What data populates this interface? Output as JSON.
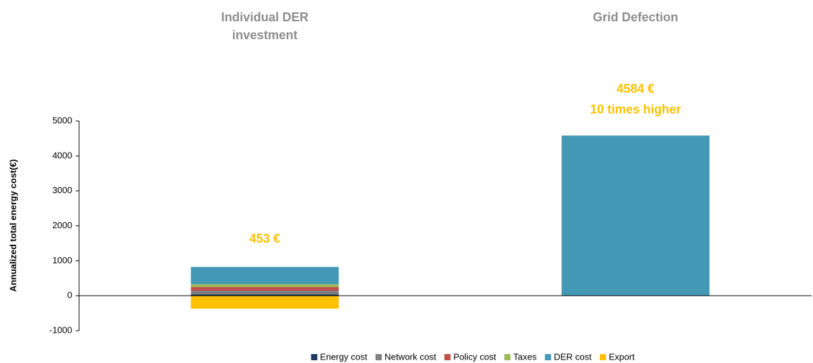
{
  "chart_data": {
    "type": "stacked_bar",
    "categories": [
      "Individual DER investment",
      "Grid Defection"
    ],
    "series": [
      {
        "name": "Energy cost",
        "color": "#1f3864",
        "values": [
          40,
          0
        ]
      },
      {
        "name": "Network cost",
        "color": "#7f7f7f",
        "values": [
          100,
          0
        ]
      },
      {
        "name": "Policy cost",
        "color": "#c0504d",
        "values": [
          110,
          0
        ]
      },
      {
        "name": "Taxes",
        "color": "#9bbb59",
        "values": [
          80,
          0
        ]
      },
      {
        "name": "DER cost",
        "color": "#4298b5",
        "values": [
          493,
          4584
        ]
      },
      {
        "name": "Export",
        "color": "#ffc000",
        "values": [
          -370,
          0
        ]
      }
    ],
    "ylabel": "Annualized total energy cost(€)",
    "ylim": [
      -1000,
      5000
    ],
    "yticks": [
      -1000,
      0,
      1000,
      2000,
      3000,
      4000,
      5000
    ],
    "annotations": [
      "453 €",
      "4584 €",
      "10 times higher"
    ],
    "legend": "bottom"
  }
}
